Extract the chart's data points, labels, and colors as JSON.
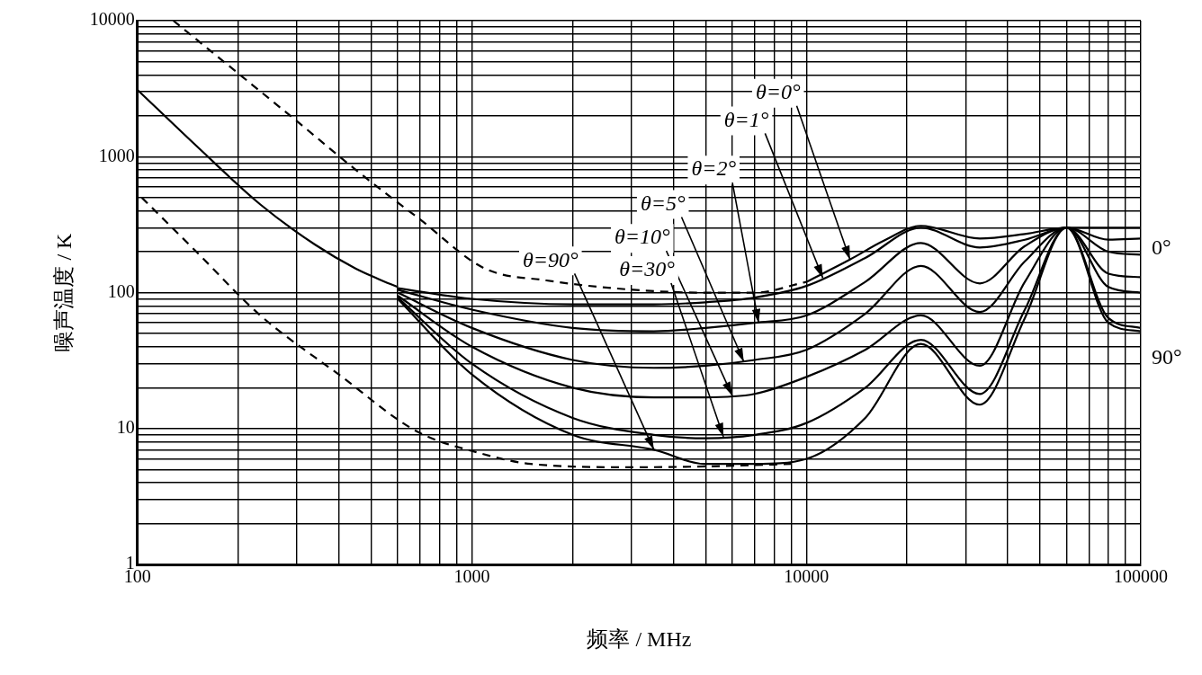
{
  "chart_data": {
    "type": "line",
    "xlabel": "频率 / MHz",
    "ylabel": "噪声温度 / K",
    "log": "xy",
    "grid": true,
    "legend": false,
    "xlim": [
      100,
      100000
    ],
    "ylim": [
      1,
      10000
    ],
    "xticks": [
      100,
      {
        "value": 200,
        "label": null
      },
      {
        "value": 300,
        "label": null
      },
      {
        "value": 400,
        "label": null
      },
      {
        "value": 500,
        "label": null
      },
      {
        "value": 600,
        "label": null
      },
      {
        "value": 700,
        "label": null
      },
      {
        "value": 800,
        "label": null
      },
      {
        "value": 900,
        "label": null
      },
      1000,
      {
        "value": 2000,
        "label": null
      },
      {
        "value": 3000,
        "label": null
      },
      {
        "value": 4000,
        "label": null
      },
      {
        "value": 5000,
        "label": null
      },
      {
        "value": 6000,
        "label": null
      },
      {
        "value": 7000,
        "label": null
      },
      {
        "value": 8000,
        "label": null
      },
      {
        "value": 9000,
        "label": null
      },
      10000,
      {
        "value": 20000,
        "label": null
      },
      {
        "value": 30000,
        "label": null
      },
      {
        "value": 40000,
        "label": null
      },
      {
        "value": 50000,
        "label": null
      },
      {
        "value": 60000,
        "label": null
      },
      {
        "value": 70000,
        "label": null
      },
      {
        "value": 80000,
        "label": null
      },
      {
        "value": 90000,
        "label": null
      },
      100000
    ],
    "yticks": [
      1,
      {
        "value": 2,
        "label": null
      },
      {
        "value": 3,
        "label": null
      },
      {
        "value": 4,
        "label": null
      },
      {
        "value": 5,
        "label": null
      },
      {
        "value": 6,
        "label": null
      },
      {
        "value": 7,
        "label": null
      },
      {
        "value": 8,
        "label": null
      },
      {
        "value": 9,
        "label": null
      },
      10,
      {
        "value": 20,
        "label": null
      },
      {
        "value": 30,
        "label": null
      },
      {
        "value": 40,
        "label": null
      },
      {
        "value": 50,
        "label": null
      },
      {
        "value": 60,
        "label": null
      },
      {
        "value": 70,
        "label": null
      },
      {
        "value": 80,
        "label": null
      },
      {
        "value": 90,
        "label": null
      },
      100,
      {
        "value": 200,
        "label": null
      },
      {
        "value": 300,
        "label": null
      },
      {
        "value": 400,
        "label": null
      },
      {
        "value": 500,
        "label": null
      },
      {
        "value": 600,
        "label": null
      },
      {
        "value": 700,
        "label": null
      },
      {
        "value": 800,
        "label": null
      },
      {
        "value": 900,
        "label": null
      },
      1000,
      {
        "value": 2000,
        "label": null
      },
      {
        "value": 3000,
        "label": null
      },
      {
        "value": 4000,
        "label": null
      },
      {
        "value": 5000,
        "label": null
      },
      {
        "value": 6000,
        "label": null
      },
      {
        "value": 7000,
        "label": null
      },
      {
        "value": 8000,
        "label": null
      },
      {
        "value": 9000,
        "label": null
      },
      10000
    ],
    "series": [
      {
        "color": "#000000",
        "x": [
          100,
          150,
          233,
          339,
          450,
          522,
          600
        ],
        "values": [
          3100,
          1200,
          445,
          226,
          150,
          127,
          110
        ]
      },
      {
        "color": "#000000",
        "line_style": "dashed",
        "x": [
          128,
          200,
          300,
          463,
          700,
          1090,
          1670,
          3030,
          5000,
          7000,
          10000
        ],
        "values": [
          10000,
          4100,
          1820,
          755,
          345,
          151,
          123,
          105,
          100,
          100,
          120
        ]
      },
      {
        "color": "#000000",
        "line_style": "dashed",
        "x": [
          103,
          150,
          233,
          400,
          687,
          1034,
          1500,
          3000,
          5500,
          9000
        ],
        "values": [
          500,
          200,
          68,
          25,
          9.5,
          6.7,
          5.5,
          5.2,
          5.3,
          5.5
        ]
      },
      {
        "color": "#000000",
        "x": [
          10000,
          13500,
          17000,
          22000,
          33000,
          45000,
          60000,
          80000,
          100000
        ],
        "values": [
          120,
          175,
          240,
          310,
          250,
          270,
          300,
          300,
          300
        ]
      },
      {
        "color": "#000000",
        "x": [
          600,
          1000,
          2000,
          3500,
          5000,
          7000,
          10000,
          15000,
          22000,
          33000,
          45000,
          60000,
          80000,
          100000
        ],
        "values": [
          108,
          90,
          82,
          82,
          85,
          92,
          112,
          180,
          300,
          215,
          245,
          300,
          245,
          250
        ]
      },
      {
        "color": "#000000",
        "x": [
          600,
          1000,
          2000,
          3500,
          5000,
          7000,
          10000,
          15000,
          22000,
          33000,
          45000,
          60000,
          80000,
          100000
        ],
        "values": [
          105,
          75,
          55,
          52,
          55,
          60,
          68,
          120,
          232,
          117,
          220,
          300,
          200,
          190
        ]
      },
      {
        "color": "#000000",
        "x": [
          600,
          1000,
          2000,
          3500,
          5000,
          7000,
          10000,
          15000,
          22000,
          33000,
          45000,
          60000,
          80000,
          100000
        ],
        "values": [
          100,
          55,
          32,
          28,
          29,
          32,
          38,
          70,
          157,
          72,
          170,
          300,
          138,
          130
        ]
      },
      {
        "color": "#000000",
        "x": [
          600,
          1000,
          2000,
          3500,
          5000,
          7000,
          10000,
          15000,
          22000,
          33000,
          45000,
          60000,
          80000,
          100000
        ],
        "values": [
          95,
          40,
          20,
          17,
          17,
          18,
          24,
          38,
          68,
          29,
          120,
          300,
          110,
          100
        ]
      },
      {
        "color": "#000000",
        "x": [
          600,
          1000,
          2000,
          3500,
          5000,
          7000,
          10000,
          15000,
          22000,
          33000,
          45000,
          60000,
          80000,
          100000
        ],
        "values": [
          92,
          30,
          12,
          9,
          8.5,
          9,
          11,
          20,
          45,
          18,
          75,
          300,
          65,
          55
        ]
      },
      {
        "color": "#000000",
        "x": [
          600,
          1000,
          2000,
          3500,
          5000,
          7000,
          10000,
          15000,
          22000,
          33000,
          45000,
          60000,
          80000,
          100000
        ],
        "values": [
          90,
          25,
          9,
          7,
          5.5,
          5.5,
          6,
          12,
          42,
          15,
          65,
          300,
          60,
          52
        ]
      }
    ],
    "annotations": [
      {
        "text": "θ=0°",
        "x": 13500,
        "y": 175
      },
      {
        "text": "θ=1°",
        "x": 11200,
        "y": 128
      },
      {
        "text": "θ=2°",
        "x": 7200,
        "y": 60
      },
      {
        "text": "θ=5°",
        "x": 6500,
        "y": 31
      },
      {
        "text": "θ=10°",
        "x": 6000,
        "y": 17.5
      },
      {
        "text": "θ=30°",
        "x": 5650,
        "y": 8.7
      },
      {
        "text": "θ=90°",
        "x": 3500,
        "y": 7
      },
      "0°",
      "90°"
    ]
  }
}
